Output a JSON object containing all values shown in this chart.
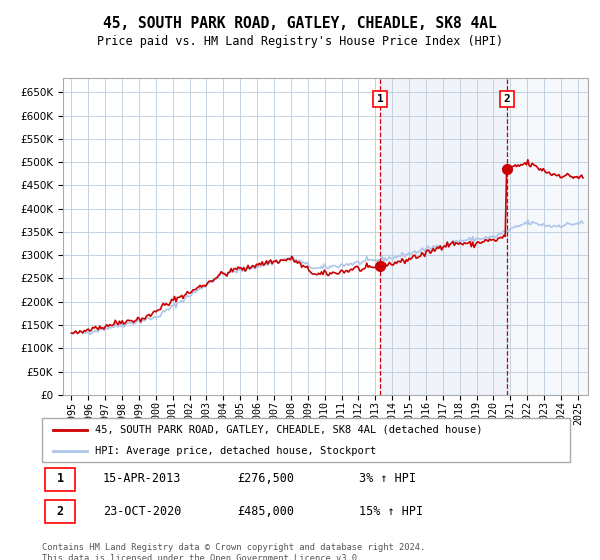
{
  "title": "45, SOUTH PARK ROAD, GATLEY, CHEADLE, SK8 4AL",
  "subtitle": "Price paid vs. HM Land Registry's House Price Index (HPI)",
  "legend_line1": "45, SOUTH PARK ROAD, GATLEY, CHEADLE, SK8 4AL (detached house)",
  "legend_line2": "HPI: Average price, detached house, Stockport",
  "annotation1_label": "1",
  "annotation1_date": "15-APR-2013",
  "annotation1_price": "£276,500",
  "annotation1_hpi": "3% ↑ HPI",
  "annotation2_label": "2",
  "annotation2_date": "23-OCT-2020",
  "annotation2_price": "£485,000",
  "annotation2_hpi": "15% ↑ HPI",
  "footer": "Contains HM Land Registry data © Crown copyright and database right 2024.\nThis data is licensed under the Open Government Licence v3.0.",
  "hpi_line_color": "#aec6e8",
  "price_line_color": "#cc0000",
  "marker_color": "#cc0000",
  "vline_color": "#cc0000",
  "plot_bg": "#ffffff",
  "grid_color": "#bbccdd",
  "ylim": [
    0,
    680000
  ],
  "yticks": [
    0,
    50000,
    100000,
    150000,
    200000,
    250000,
    300000,
    350000,
    400000,
    450000,
    500000,
    550000,
    600000,
    650000
  ],
  "purchase1_year": 2013.29,
  "purchase2_year": 2020.81,
  "purchase1_value": 276500,
  "purchase2_value": 485000
}
